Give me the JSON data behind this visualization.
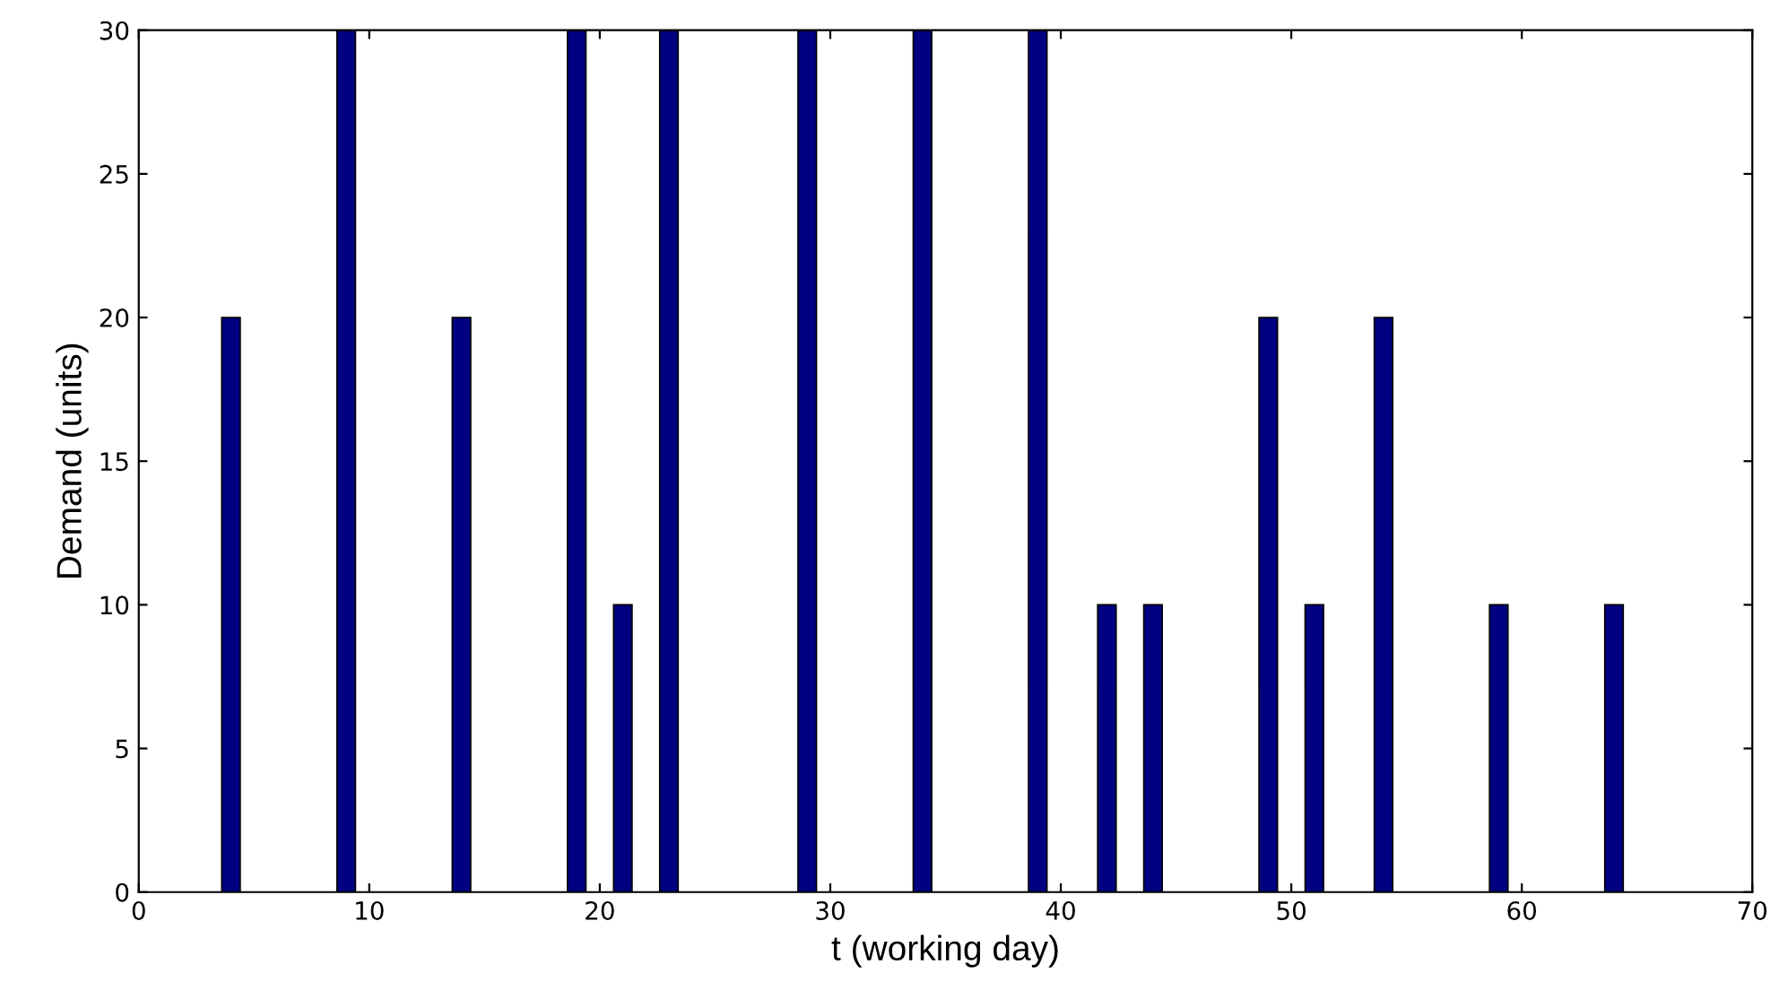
{
  "chart_data": {
    "type": "bar",
    "xlabel": "t (working day)",
    "ylabel": "Demand (units)",
    "x": [
      4,
      9,
      14,
      19,
      21,
      23,
      29,
      34,
      39,
      42,
      44,
      49,
      51,
      54,
      59,
      64
    ],
    "values": [
      20,
      30,
      20,
      30,
      10,
      30,
      30,
      30,
      30,
      10,
      10,
      20,
      10,
      20,
      10,
      10
    ],
    "color": "#000080",
    "xlim": [
      0,
      70
    ],
    "xticks": [
      0,
      10,
      20,
      30,
      40,
      50,
      60,
      70
    ],
    "ylim": [
      0,
      30
    ],
    "yticks": [
      0,
      5,
      10,
      15,
      20,
      25,
      30
    ],
    "grid": false
  }
}
